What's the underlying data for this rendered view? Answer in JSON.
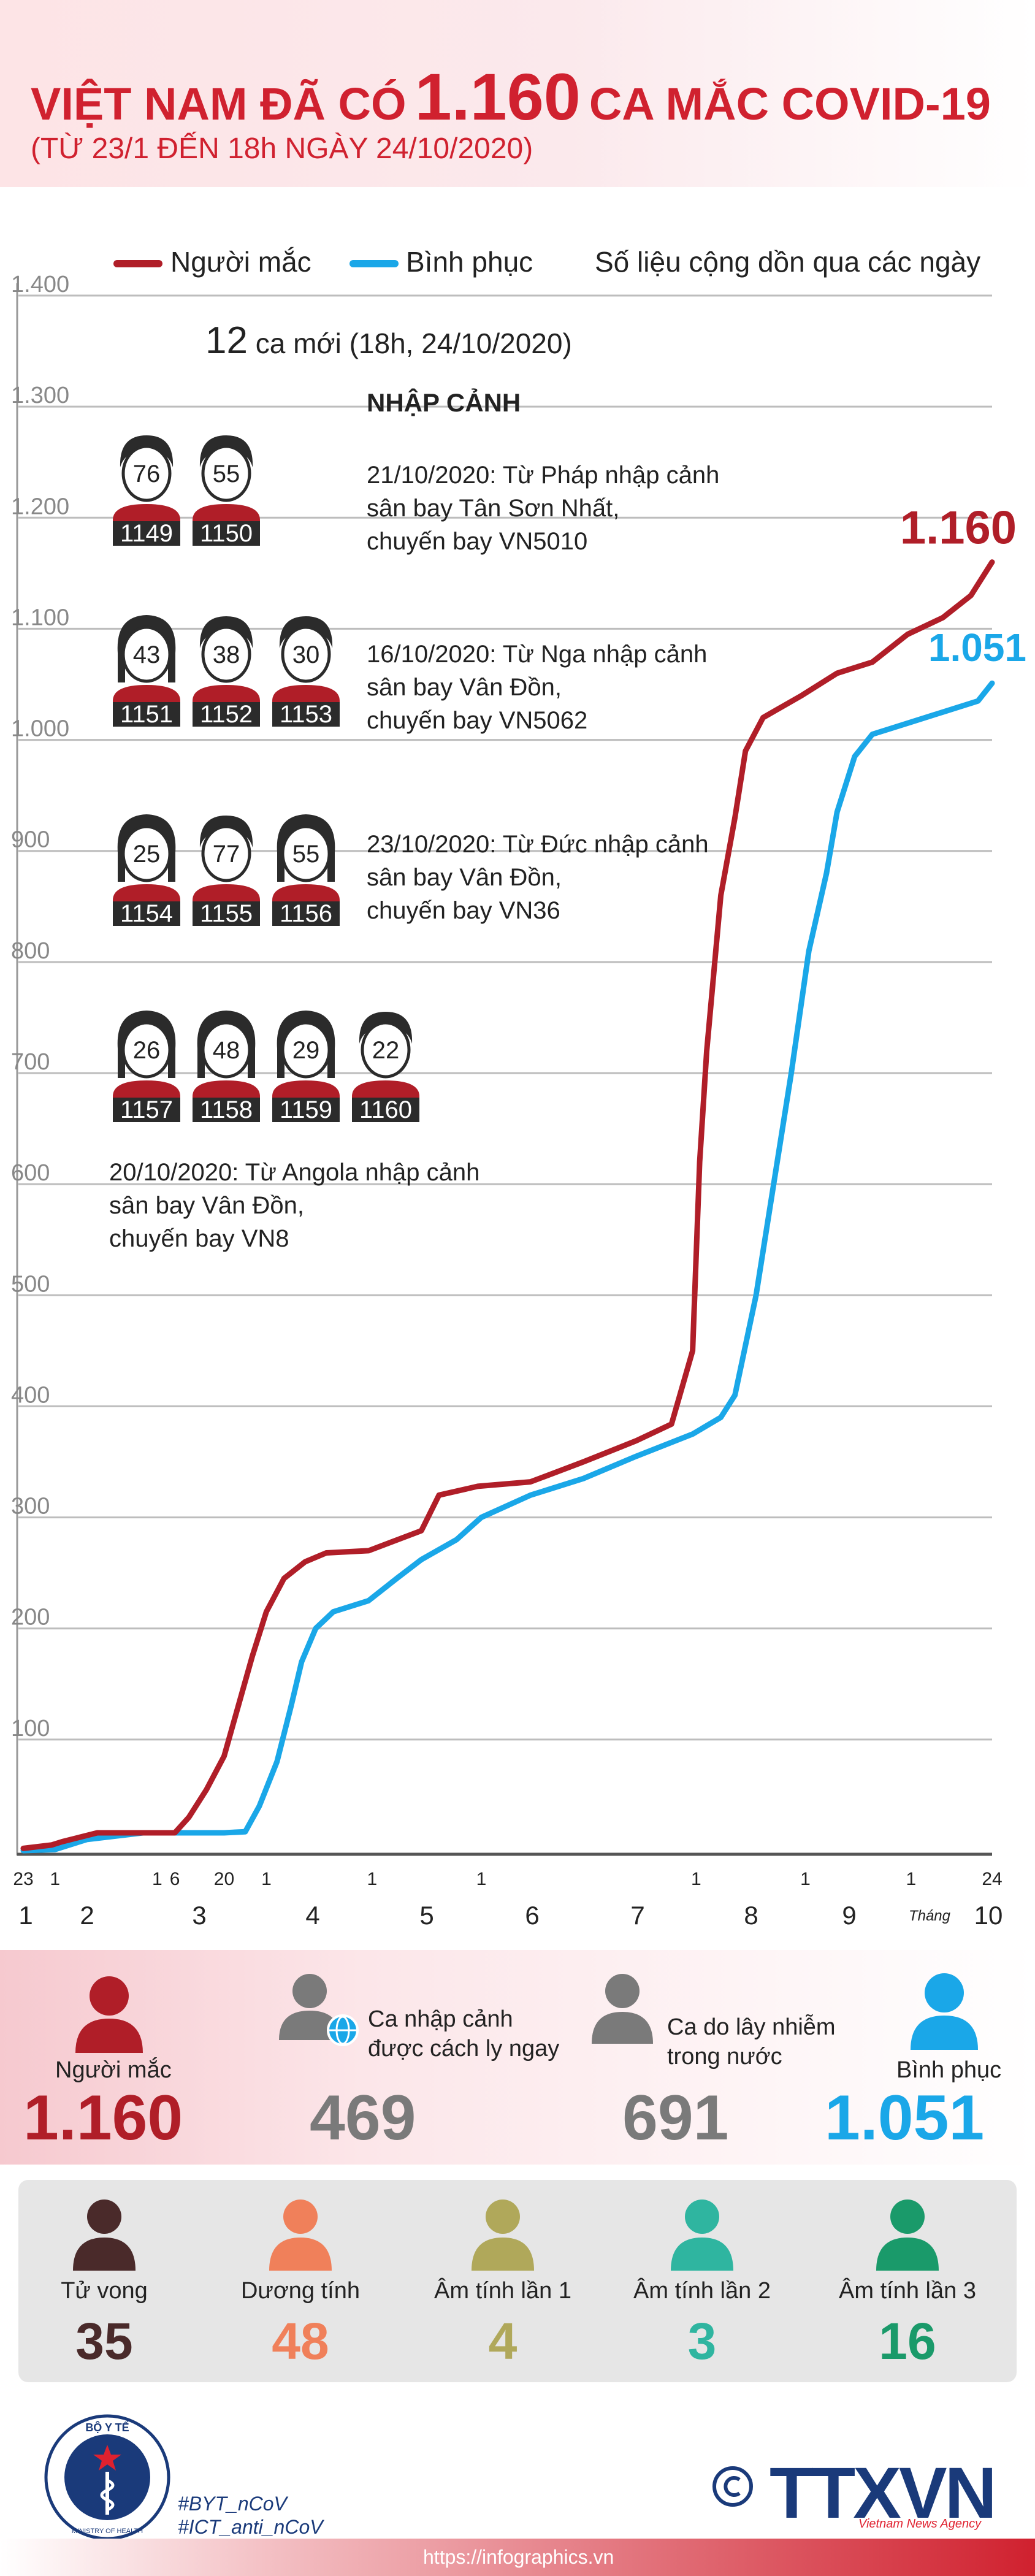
{
  "header": {
    "title_pre": "VIỆT NAM ĐÃ CÓ",
    "title_number": "1.160",
    "title_post": "CA MẮC COVID-19",
    "subtitle": "(TỪ 23/1 ĐẾN 18h NGÀY 24/10/2020)"
  },
  "legend": {
    "cases": "Người mắc",
    "recovered": "Bình phục",
    "note": "Số liệu cộng dồn qua các ngày"
  },
  "chart_data": {
    "type": "line",
    "ylim": [
      0,
      1400
    ],
    "yticks": [
      "1.400",
      "1.300",
      "1.200",
      "1.100",
      "1.000",
      "900",
      "800",
      "700",
      "600",
      "500",
      "400",
      "300",
      "200",
      "100"
    ],
    "xticks": [
      "23",
      "1",
      "1",
      "6",
      "20",
      "1",
      "1",
      "1",
      "1",
      "1",
      "1",
      "24"
    ],
    "months": [
      "1",
      "2",
      "3",
      "4",
      "5",
      "6",
      "7",
      "8",
      "9",
      "10"
    ],
    "month_suffix": "Tháng",
    "end_labels": {
      "cases": "1.160",
      "recovered": "1.051"
    },
    "colors": {
      "cases": "#b01e28",
      "recovered": "#1aa7e8"
    },
    "series": [
      {
        "name": "Người mắc",
        "color": "#b01e28",
        "points": [
          [
            "2020-01-23",
            2
          ],
          [
            "2020-01-31",
            5
          ],
          [
            "2020-02-03",
            8
          ],
          [
            "2020-02-08",
            12
          ],
          [
            "2020-02-13",
            16
          ],
          [
            "2020-03-06",
            16
          ],
          [
            "2020-03-10",
            30
          ],
          [
            "2020-03-15",
            55
          ],
          [
            "2020-03-20",
            85
          ],
          [
            "2020-03-24",
            130
          ],
          [
            "2020-03-28",
            175
          ],
          [
            "2020-04-01",
            215
          ],
          [
            "2020-04-06",
            245
          ],
          [
            "2020-04-12",
            260
          ],
          [
            "2020-04-18",
            268
          ],
          [
            "2020-04-30",
            270
          ],
          [
            "2020-05-15",
            288
          ],
          [
            "2020-05-20",
            320
          ],
          [
            "2020-05-31",
            328
          ],
          [
            "2020-06-15",
            332
          ],
          [
            "2020-06-30",
            350
          ],
          [
            "2020-07-15",
            369
          ],
          [
            "2020-07-25",
            384
          ],
          [
            "2020-07-31",
            450
          ],
          [
            "2020-08-02",
            620
          ],
          [
            "2020-08-04",
            720
          ],
          [
            "2020-08-06",
            790
          ],
          [
            "2020-08-08",
            860
          ],
          [
            "2020-08-12",
            930
          ],
          [
            "2020-08-15",
            990
          ],
          [
            "2020-08-20",
            1020
          ],
          [
            "2020-08-31",
            1040
          ],
          [
            "2020-09-10",
            1060
          ],
          [
            "2020-09-20",
            1070
          ],
          [
            "2020-09-30",
            1095
          ],
          [
            "2020-10-10",
            1110
          ],
          [
            "2020-10-18",
            1130
          ],
          [
            "2020-10-24",
            1160
          ]
        ]
      },
      {
        "name": "Bình phục",
        "color": "#1aa7e8",
        "points": [
          [
            "2020-01-23",
            0
          ],
          [
            "2020-02-01",
            1
          ],
          [
            "2020-02-10",
            10
          ],
          [
            "2020-02-26",
            16
          ],
          [
            "2020-03-20",
            16
          ],
          [
            "2020-03-26",
            17
          ],
          [
            "2020-03-30",
            40
          ],
          [
            "2020-04-04",
            80
          ],
          [
            "2020-04-08",
            130
          ],
          [
            "2020-04-11",
            170
          ],
          [
            "2020-04-15",
            200
          ],
          [
            "2020-04-20",
            215
          ],
          [
            "2020-04-30",
            225
          ],
          [
            "2020-05-08",
            245
          ],
          [
            "2020-05-15",
            262
          ],
          [
            "2020-05-25",
            280
          ],
          [
            "2020-06-01",
            300
          ],
          [
            "2020-06-15",
            320
          ],
          [
            "2020-06-30",
            335
          ],
          [
            "2020-07-15",
            355
          ],
          [
            "2020-07-31",
            375
          ],
          [
            "2020-08-08",
            390
          ],
          [
            "2020-08-12",
            410
          ],
          [
            "2020-08-18",
            500
          ],
          [
            "2020-08-23",
            600
          ],
          [
            "2020-08-28",
            700
          ],
          [
            "2020-09-02",
            810
          ],
          [
            "2020-09-07",
            880
          ],
          [
            "2020-09-10",
            935
          ],
          [
            "2020-09-15",
            985
          ],
          [
            "2020-09-20",
            1005
          ],
          [
            "2020-09-30",
            1015
          ],
          [
            "2020-10-10",
            1025
          ],
          [
            "2020-10-20",
            1035
          ],
          [
            "2020-10-24",
            1051
          ]
        ]
      }
    ]
  },
  "annotations": {
    "new_cases_num": "12",
    "new_cases_text": "ca mới (18h, 24/10/2020)",
    "imported_heading": "NHẬP CẢNH",
    "groups": [
      {
        "text": [
          "21/10/2020: Từ Pháp nhập cảnh",
          "sân bay Tân Sơn Nhất,",
          "chuyến bay VN5010"
        ],
        "people": [
          {
            "age": "76",
            "id": "1149",
            "gender": "m"
          },
          {
            "age": "55",
            "id": "1150",
            "gender": "m"
          }
        ]
      },
      {
        "text": [
          "16/10/2020: Từ Nga nhập cảnh",
          "sân bay Vân Đồn,",
          "chuyến bay VN5062"
        ],
        "people": [
          {
            "age": "43",
            "id": "1151",
            "gender": "f"
          },
          {
            "age": "38",
            "id": "1152",
            "gender": "m"
          },
          {
            "age": "30",
            "id": "1153",
            "gender": "m"
          }
        ]
      },
      {
        "text": [
          "23/10/2020: Từ Đức nhập cảnh",
          "sân bay Vân Đồn,",
          "chuyến bay VN36"
        ],
        "people": [
          {
            "age": "25",
            "id": "1154",
            "gender": "f"
          },
          {
            "age": "77",
            "id": "1155",
            "gender": "m"
          },
          {
            "age": "55",
            "id": "1156",
            "gender": "f"
          }
        ]
      },
      {
        "text": [
          "20/10/2020: Từ Angola nhập cảnh",
          "sân bay Vân Đồn,",
          "chuyến bay VN8"
        ],
        "people": [
          {
            "age": "26",
            "id": "1157",
            "gender": "f"
          },
          {
            "age": "48",
            "id": "1158",
            "gender": "f"
          },
          {
            "age": "29",
            "id": "1159",
            "gender": "f"
          },
          {
            "age": "22",
            "id": "1160",
            "gender": "m"
          }
        ]
      }
    ]
  },
  "summary": {
    "cases": {
      "label": "Người mắc",
      "value": "1.160",
      "color": "#b01e28"
    },
    "quarantined": {
      "label1": "Ca nhập cảnh",
      "label2": "được cách ly ngay",
      "value": "469",
      "color": "#7a7a7a"
    },
    "community": {
      "label1": "Ca do lây nhiễm",
      "label2": "trong nước",
      "value": "691",
      "color": "#7a7a7a"
    },
    "recovered": {
      "label": "Bình phục",
      "value": "1.051",
      "color": "#1aa7e8"
    }
  },
  "details": [
    {
      "label": "Tử vong",
      "value": "35",
      "color": "#4a2a2a"
    },
    {
      "label": "Dương tính",
      "value": "48",
      "color": "#f0805a"
    },
    {
      "label": "Âm tính lần 1",
      "value": "4",
      "color": "#b0a85a"
    },
    {
      "label": "Âm tính lần 2",
      "value": "3",
      "color": "#2fb5a0"
    },
    {
      "label": "Âm tính lần 3",
      "value": "16",
      "color": "#1a9a6a"
    }
  ],
  "footer": {
    "logo_top": "BỘ Y TẾ",
    "logo_bottom": "MINISTRY OF HEALTH",
    "hashtags": [
      "#BYT_nCoV",
      "#ICT_anti_nCoV"
    ],
    "agency": "TTXVN",
    "agency_sub": "Vietnam News Agency",
    "url": "https://infographics.vn"
  }
}
